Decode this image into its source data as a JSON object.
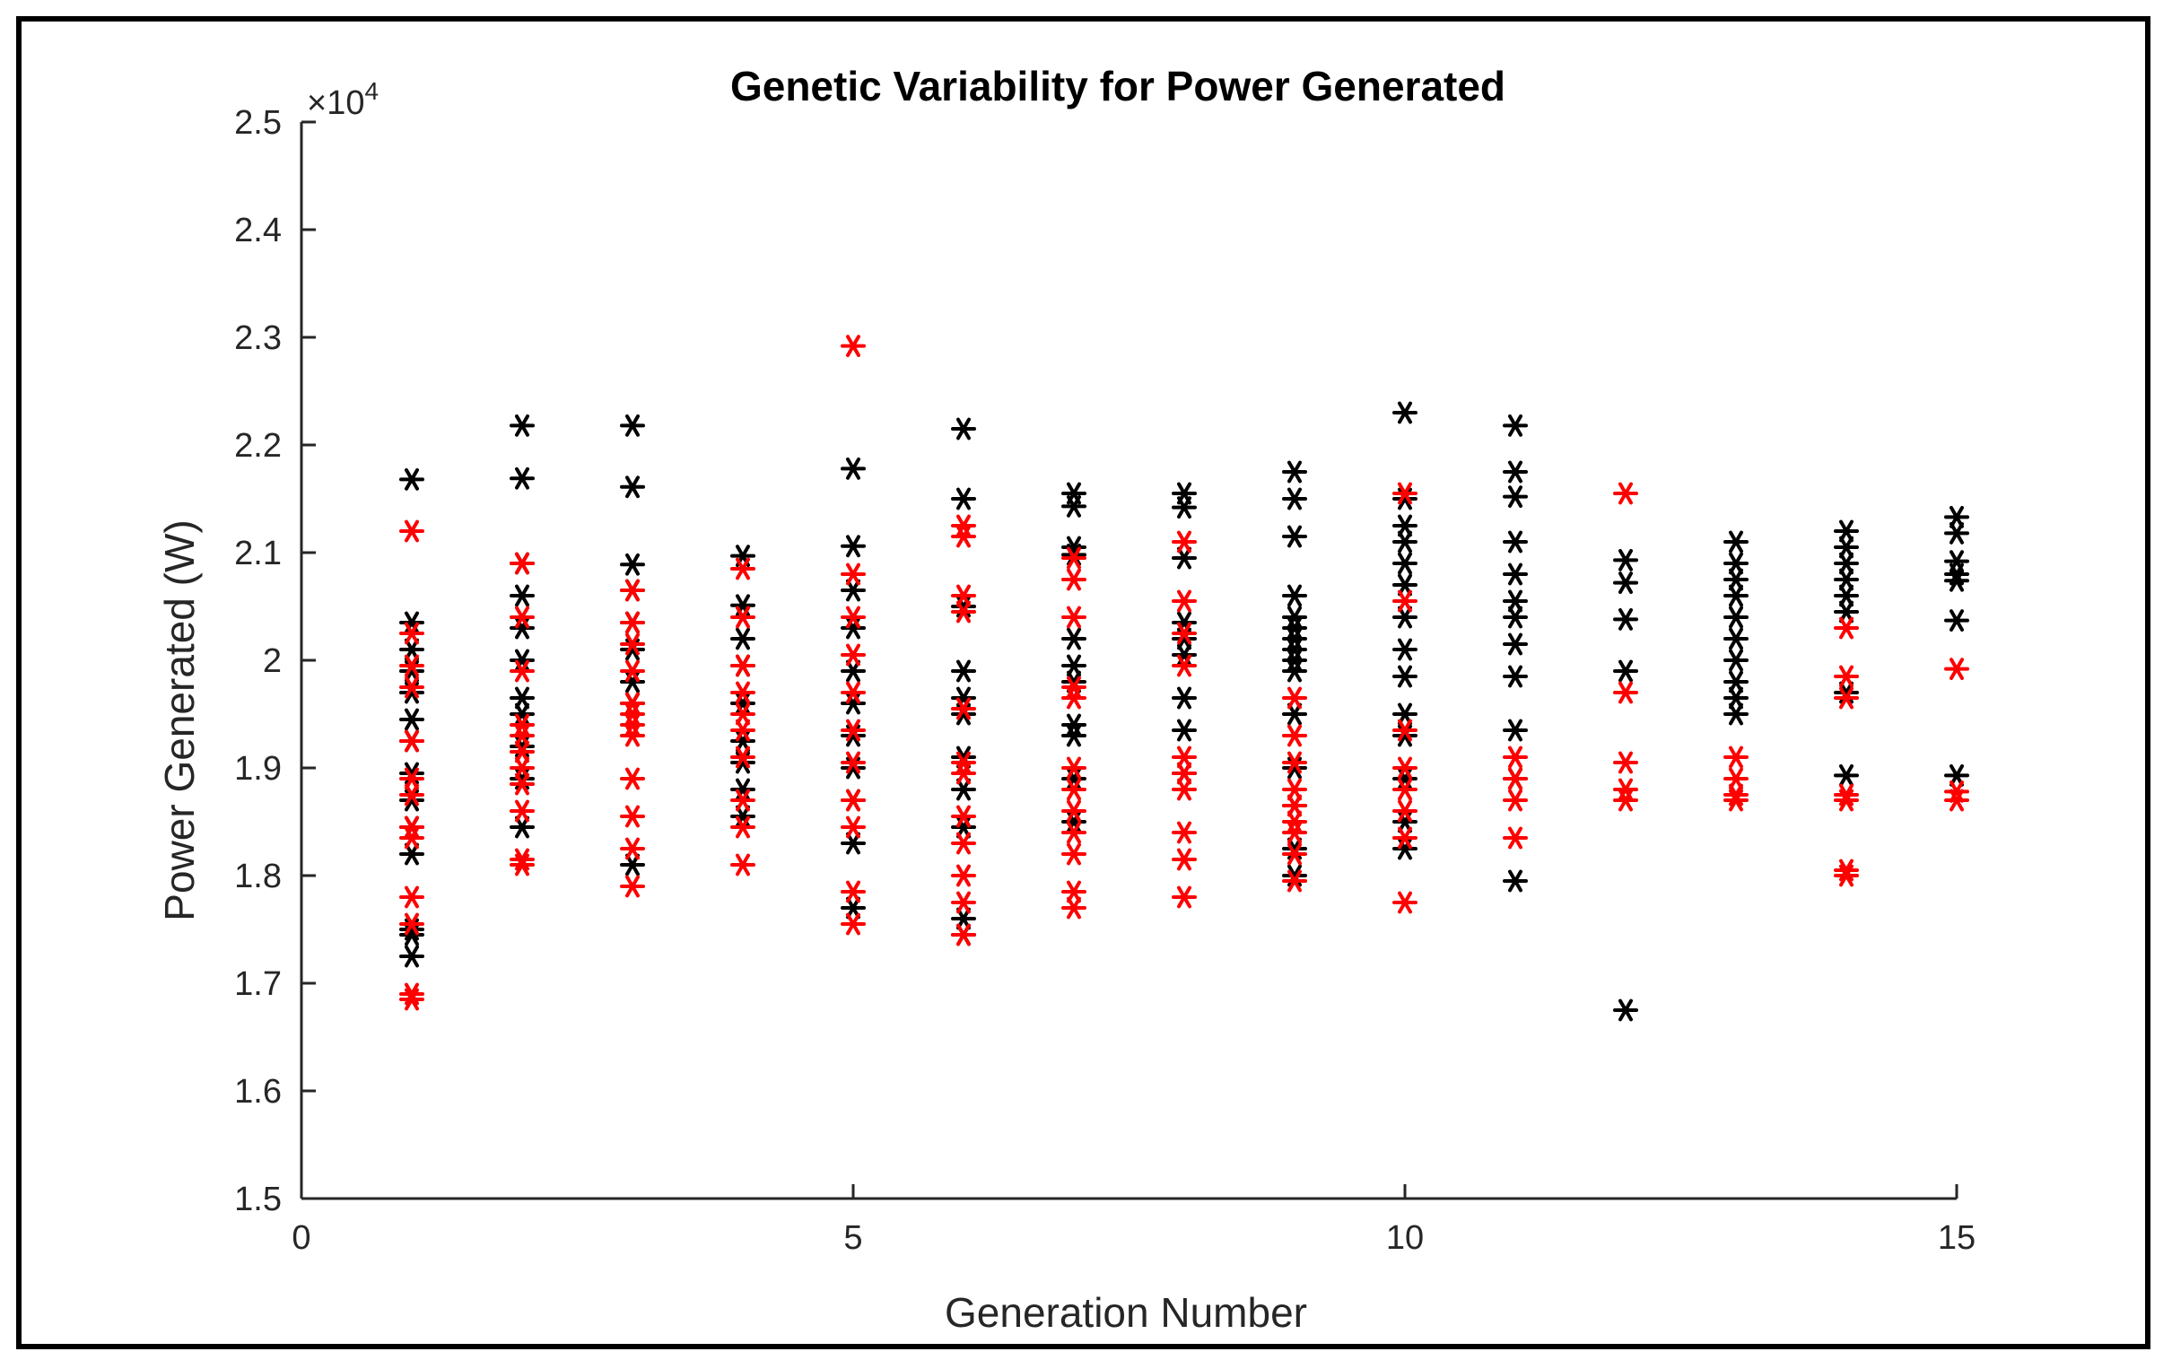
{
  "chart_data": {
    "type": "scatter",
    "title": "Genetic Variability for Power Generated",
    "xlabel": "Generation Number",
    "ylabel": "Power Generated (W)",
    "xlim": [
      0,
      15
    ],
    "ylim": [
      15000,
      25000
    ],
    "xticks": [
      0,
      5,
      10,
      15
    ],
    "yticks": [
      1.5,
      1.6,
      1.7,
      1.8,
      1.9,
      2,
      2.1,
      2.2,
      2.3,
      2.4,
      2.5
    ],
    "ytick_labels": [
      "1.5",
      "1.6",
      "1.7",
      "1.8",
      "1.9",
      "2",
      "2.1",
      "2.2",
      "2.3",
      "2.4",
      "2.5"
    ],
    "y_exponent_base": "×10",
    "y_exponent_power": "4",
    "grid": false,
    "marker": "asterisk",
    "series": [
      {
        "name": "black",
        "color": "#000000",
        "points": [
          [
            1,
            21680
          ],
          [
            1,
            20350
          ],
          [
            1,
            20100
          ],
          [
            1,
            19900
          ],
          [
            1,
            19700
          ],
          [
            1,
            19450
          ],
          [
            1,
            19250
          ],
          [
            1,
            18950
          ],
          [
            1,
            18700
          ],
          [
            1,
            18450
          ],
          [
            1,
            18200
          ],
          [
            1,
            17500
          ],
          [
            1,
            17450
          ],
          [
            1,
            17250
          ],
          [
            2,
            22180
          ],
          [
            2,
            21690
          ],
          [
            2,
            20900
          ],
          [
            2,
            20600
          ],
          [
            2,
            20300
          ],
          [
            2,
            20000
          ],
          [
            2,
            19650
          ],
          [
            2,
            19500
          ],
          [
            2,
            19200
          ],
          [
            2,
            18900
          ],
          [
            2,
            18450
          ],
          [
            3,
            22180
          ],
          [
            3,
            21610
          ],
          [
            3,
            20890
          ],
          [
            3,
            20650
          ],
          [
            3,
            20350
          ],
          [
            3,
            20100
          ],
          [
            3,
            19800
          ],
          [
            3,
            19600
          ],
          [
            3,
            18100
          ],
          [
            4,
            20970
          ],
          [
            4,
            20510
          ],
          [
            4,
            20200
          ],
          [
            4,
            19950
          ],
          [
            4,
            19600
          ],
          [
            4,
            19250
          ],
          [
            4,
            19050
          ],
          [
            4,
            18800
          ],
          [
            4,
            18550
          ],
          [
            5,
            21780
          ],
          [
            5,
            21060
          ],
          [
            5,
            20650
          ],
          [
            5,
            20300
          ],
          [
            5,
            19900
          ],
          [
            5,
            19600
          ],
          [
            5,
            19300
          ],
          [
            5,
            19000
          ],
          [
            5,
            18700
          ],
          [
            5,
            18300
          ],
          [
            5,
            17700
          ],
          [
            6,
            22150
          ],
          [
            6,
            21500
          ],
          [
            6,
            20500
          ],
          [
            6,
            19900
          ],
          [
            6,
            19650
          ],
          [
            6,
            19500
          ],
          [
            6,
            19100
          ],
          [
            6,
            18800
          ],
          [
            6,
            18450
          ],
          [
            6,
            17600
          ],
          [
            6,
            17450
          ],
          [
            7,
            21550
          ],
          [
            7,
            21430
          ],
          [
            7,
            21050
          ],
          [
            7,
            20980
          ],
          [
            7,
            20200
          ],
          [
            7,
            19950
          ],
          [
            7,
            19800
          ],
          [
            7,
            19400
          ],
          [
            7,
            19300
          ],
          [
            7,
            18900
          ],
          [
            7,
            18500
          ],
          [
            8,
            21550
          ],
          [
            8,
            21420
          ],
          [
            8,
            20950
          ],
          [
            8,
            20350
          ],
          [
            8,
            20200
          ],
          [
            8,
            20050
          ],
          [
            8,
            19650
          ],
          [
            8,
            19350
          ],
          [
            8,
            18950
          ],
          [
            9,
            21750
          ],
          [
            9,
            21500
          ],
          [
            9,
            21150
          ],
          [
            9,
            20600
          ],
          [
            9,
            20400
          ],
          [
            9,
            20300
          ],
          [
            9,
            20200
          ],
          [
            9,
            20100
          ],
          [
            9,
            20000
          ],
          [
            9,
            19900
          ],
          [
            9,
            19500
          ],
          [
            9,
            19000
          ],
          [
            9,
            18650
          ],
          [
            9,
            18250
          ],
          [
            9,
            18000
          ],
          [
            10,
            22300
          ],
          [
            10,
            21500
          ],
          [
            10,
            21250
          ],
          [
            10,
            21100
          ],
          [
            10,
            20900
          ],
          [
            10,
            20700
          ],
          [
            10,
            20400
          ],
          [
            10,
            20100
          ],
          [
            10,
            19850
          ],
          [
            10,
            19500
          ],
          [
            10,
            19300
          ],
          [
            10,
            18900
          ],
          [
            10,
            18500
          ],
          [
            10,
            18250
          ],
          [
            11,
            22180
          ],
          [
            11,
            21750
          ],
          [
            11,
            21520
          ],
          [
            11,
            21100
          ],
          [
            11,
            20800
          ],
          [
            11,
            20550
          ],
          [
            11,
            20400
          ],
          [
            11,
            20150
          ],
          [
            11,
            19850
          ],
          [
            11,
            19350
          ],
          [
            11,
            18900
          ],
          [
            11,
            17950
          ],
          [
            12,
            20930
          ],
          [
            12,
            20720
          ],
          [
            12,
            20380
          ],
          [
            12,
            19900
          ],
          [
            12,
            16750
          ],
          [
            13,
            21100
          ],
          [
            13,
            20900
          ],
          [
            13,
            20750
          ],
          [
            13,
            20600
          ],
          [
            13,
            20400
          ],
          [
            13,
            20200
          ],
          [
            13,
            20000
          ],
          [
            13,
            19800
          ],
          [
            13,
            19650
          ],
          [
            13,
            19500
          ],
          [
            14,
            21200
          ],
          [
            14,
            21050
          ],
          [
            14,
            20900
          ],
          [
            14,
            20750
          ],
          [
            14,
            20600
          ],
          [
            14,
            20450
          ],
          [
            14,
            19700
          ],
          [
            14,
            18930
          ],
          [
            15,
            21330
          ],
          [
            15,
            21180
          ],
          [
            15,
            20920
          ],
          [
            15,
            20800
          ],
          [
            15,
            20740
          ],
          [
            15,
            20370
          ],
          [
            15,
            18930
          ]
        ]
      },
      {
        "name": "red",
        "color": "#ff0000",
        "points": [
          [
            1,
            21200
          ],
          [
            1,
            20250
          ],
          [
            1,
            19950
          ],
          [
            1,
            19750
          ],
          [
            1,
            19250
          ],
          [
            1,
            18900
          ],
          [
            1,
            18750
          ],
          [
            1,
            18450
          ],
          [
            1,
            18350
          ],
          [
            1,
            17800
          ],
          [
            1,
            17550
          ],
          [
            1,
            16900
          ],
          [
            1,
            16850
          ],
          [
            2,
            20900
          ],
          [
            2,
            20400
          ],
          [
            2,
            19900
          ],
          [
            2,
            19400
          ],
          [
            2,
            19300
          ],
          [
            2,
            19150
          ],
          [
            2,
            19000
          ],
          [
            2,
            18850
          ],
          [
            2,
            18600
          ],
          [
            2,
            18150
          ],
          [
            2,
            18100
          ],
          [
            3,
            20650
          ],
          [
            3,
            20350
          ],
          [
            3,
            20150
          ],
          [
            3,
            19900
          ],
          [
            3,
            19600
          ],
          [
            3,
            19500
          ],
          [
            3,
            19400
          ],
          [
            3,
            19300
          ],
          [
            3,
            18900
          ],
          [
            3,
            18550
          ],
          [
            3,
            18250
          ],
          [
            3,
            17900
          ],
          [
            4,
            20850
          ],
          [
            4,
            20400
          ],
          [
            4,
            19950
          ],
          [
            4,
            19700
          ],
          [
            4,
            19500
          ],
          [
            4,
            19350
          ],
          [
            4,
            19100
          ],
          [
            4,
            18700
          ],
          [
            4,
            18450
          ],
          [
            4,
            18100
          ],
          [
            5,
            22920
          ],
          [
            5,
            20800
          ],
          [
            5,
            20400
          ],
          [
            5,
            20050
          ],
          [
            5,
            19700
          ],
          [
            5,
            19350
          ],
          [
            5,
            19050
          ],
          [
            5,
            18700
          ],
          [
            5,
            18450
          ],
          [
            5,
            17850
          ],
          [
            5,
            17550
          ],
          [
            6,
            21250
          ],
          [
            6,
            21150
          ],
          [
            6,
            20600
          ],
          [
            6,
            20450
          ],
          [
            6,
            19550
          ],
          [
            6,
            19050
          ],
          [
            6,
            18950
          ],
          [
            6,
            18550
          ],
          [
            6,
            18300
          ],
          [
            6,
            18000
          ],
          [
            6,
            17750
          ],
          [
            6,
            17450
          ],
          [
            7,
            20950
          ],
          [
            7,
            20750
          ],
          [
            7,
            20400
          ],
          [
            7,
            19750
          ],
          [
            7,
            19650
          ],
          [
            7,
            19000
          ],
          [
            7,
            18800
          ],
          [
            7,
            18600
          ],
          [
            7,
            18400
          ],
          [
            7,
            18200
          ],
          [
            7,
            17850
          ],
          [
            7,
            17700
          ],
          [
            8,
            21100
          ],
          [
            8,
            20550
          ],
          [
            8,
            20250
          ],
          [
            8,
            19950
          ],
          [
            8,
            19100
          ],
          [
            8,
            18950
          ],
          [
            8,
            18800
          ],
          [
            8,
            18400
          ],
          [
            8,
            18150
          ],
          [
            8,
            17800
          ],
          [
            9,
            19650
          ],
          [
            9,
            19300
          ],
          [
            9,
            19050
          ],
          [
            9,
            18800
          ],
          [
            9,
            18650
          ],
          [
            9,
            18500
          ],
          [
            9,
            18400
          ],
          [
            9,
            18200
          ],
          [
            9,
            17950
          ],
          [
            10,
            21550
          ],
          [
            10,
            20550
          ],
          [
            10,
            19350
          ],
          [
            10,
            19000
          ],
          [
            10,
            18800
          ],
          [
            10,
            18600
          ],
          [
            10,
            18350
          ],
          [
            10,
            17750
          ],
          [
            11,
            19100
          ],
          [
            11,
            18900
          ],
          [
            11,
            18700
          ],
          [
            11,
            18350
          ],
          [
            12,
            21550
          ],
          [
            12,
            19700
          ],
          [
            12,
            19050
          ],
          [
            12,
            18800
          ],
          [
            12,
            18700
          ],
          [
            13,
            19100
          ],
          [
            13,
            18900
          ],
          [
            13,
            18750
          ],
          [
            13,
            18700
          ],
          [
            14,
            20300
          ],
          [
            14,
            19850
          ],
          [
            14,
            19650
          ],
          [
            14,
            18750
          ],
          [
            14,
            18700
          ],
          [
            14,
            18050
          ],
          [
            14,
            18000
          ],
          [
            15,
            19920
          ],
          [
            15,
            18780
          ],
          [
            15,
            18700
          ]
        ]
      }
    ]
  }
}
